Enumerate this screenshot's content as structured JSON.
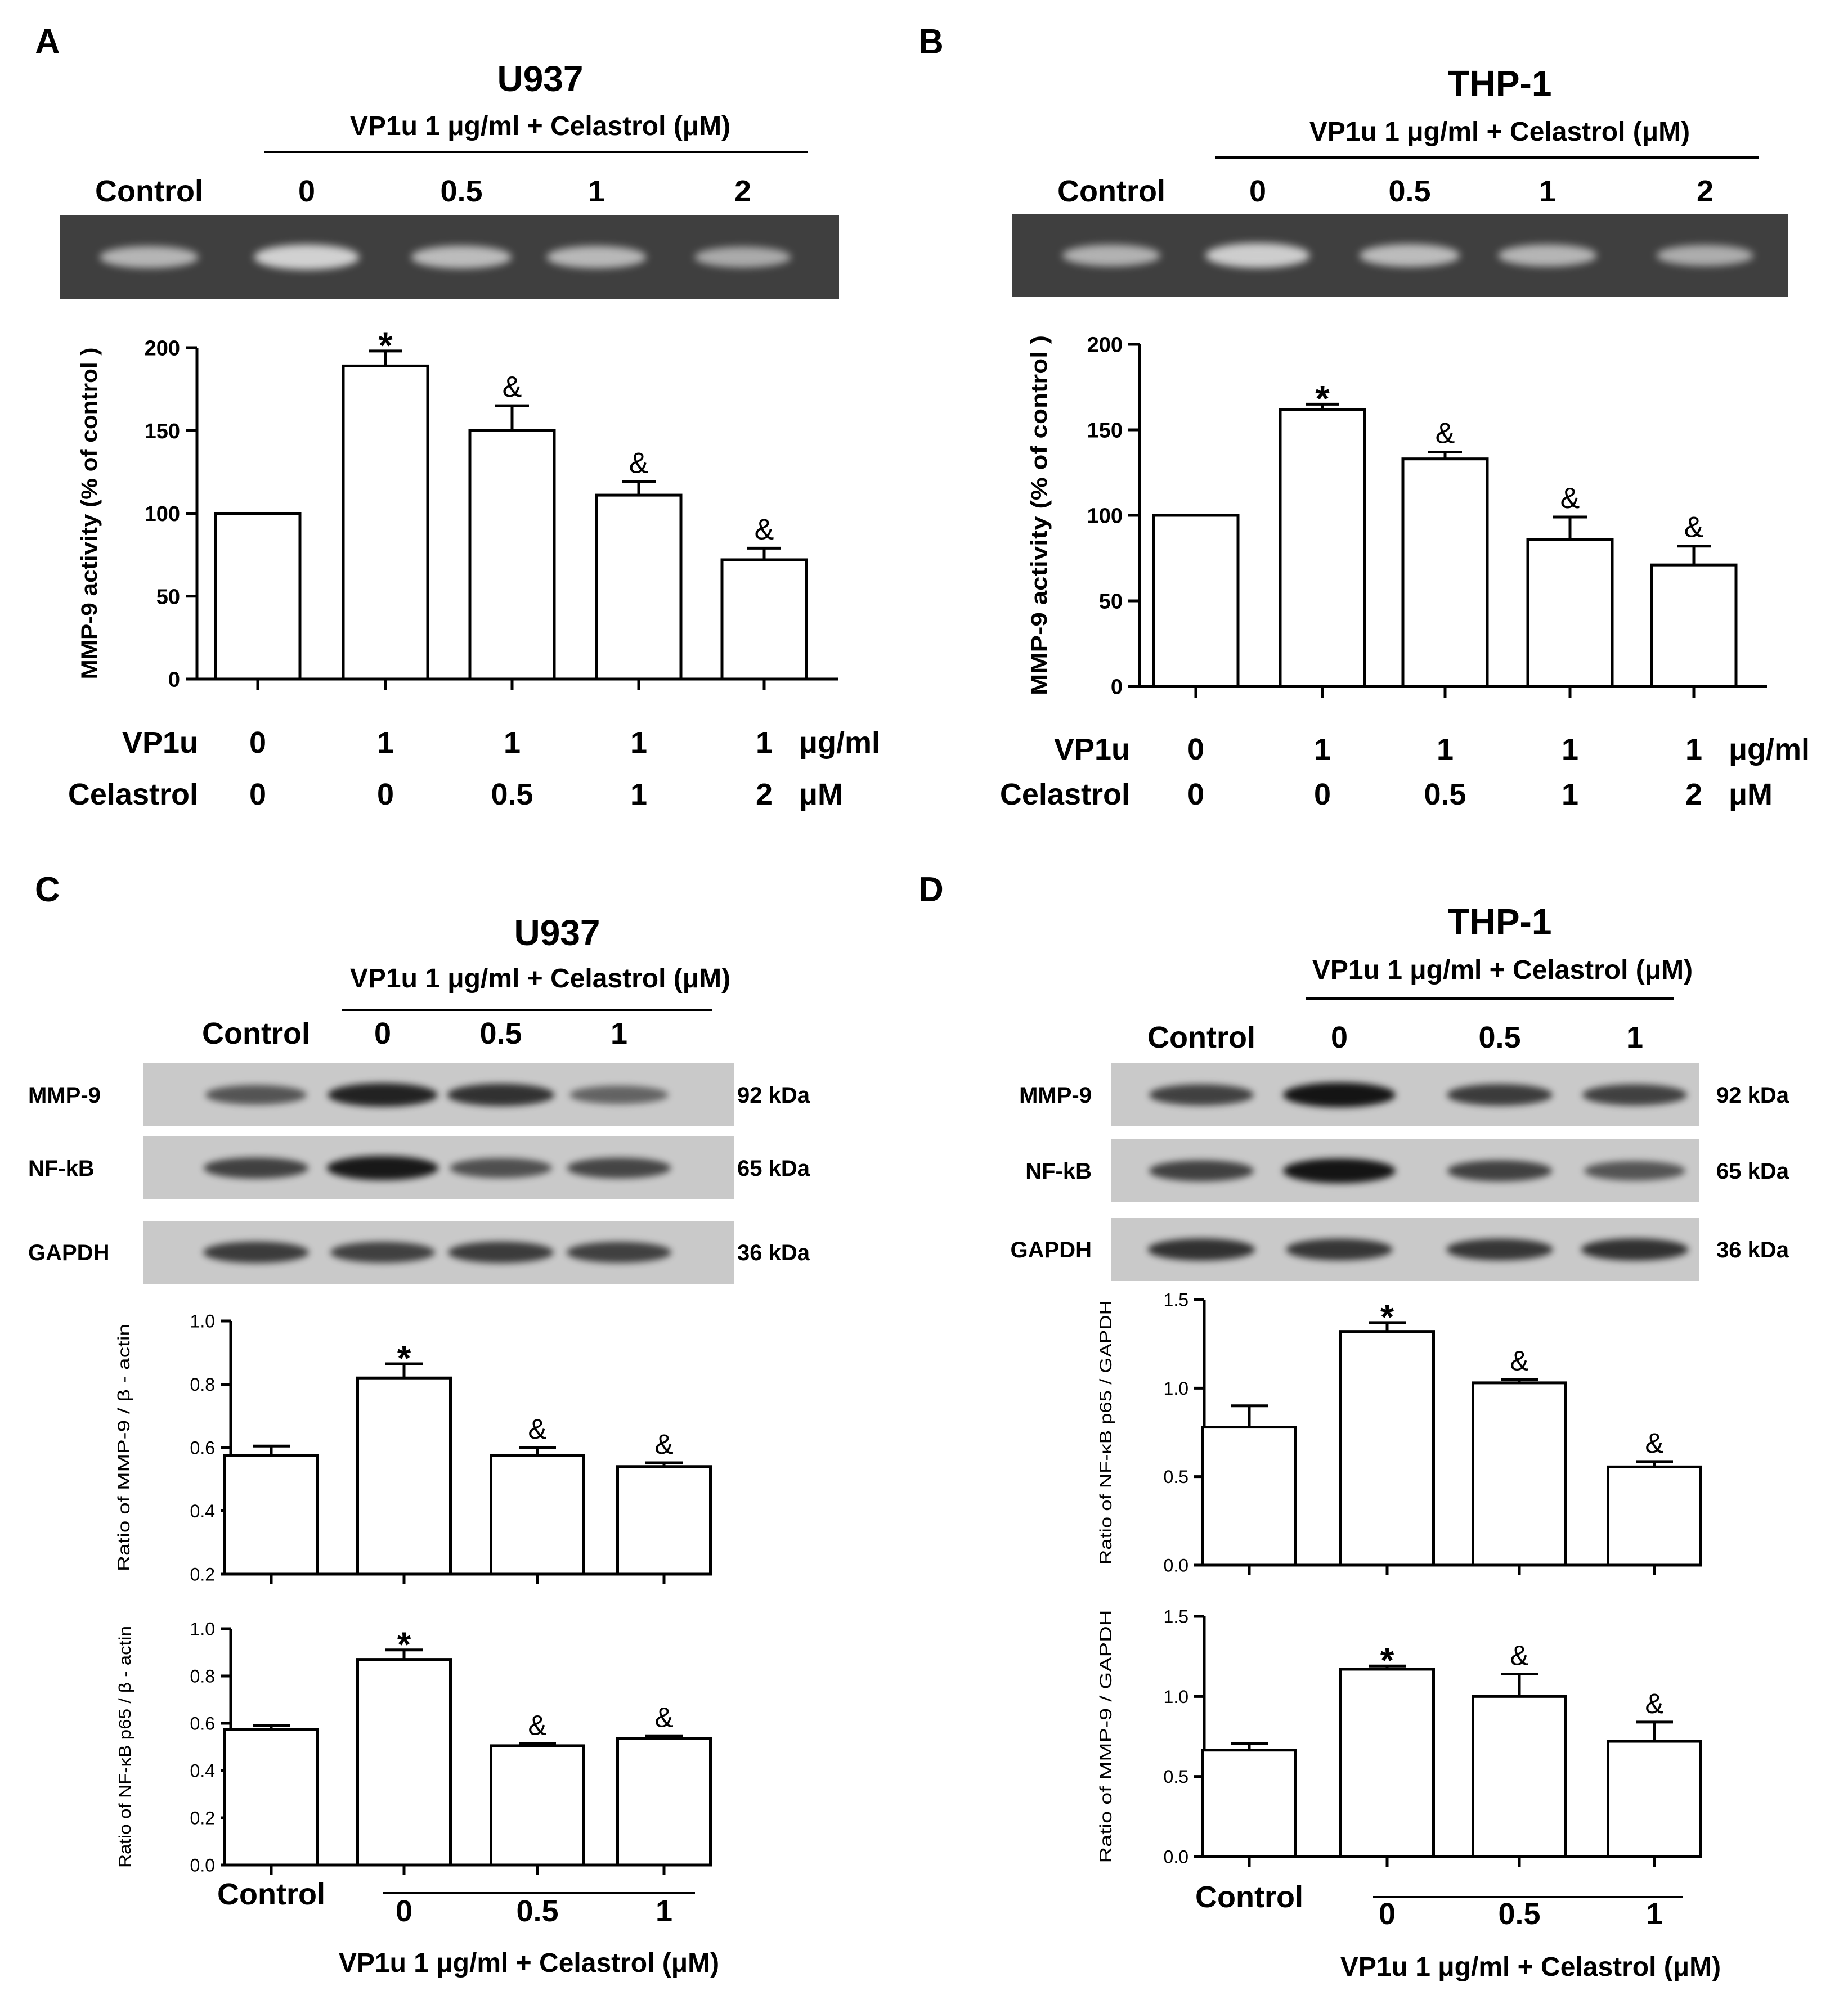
{
  "colors": {
    "gel_bg": "#3f3f3f",
    "gel_band": "#d8d8d8",
    "blot_bg": "#c9c9c9",
    "blot_band": "#141414",
    "bar_fill": "#ffffff",
    "ink": "#000000"
  },
  "chart_data": [
    {
      "panel_letter": "A",
      "type": "bar",
      "cell_line": "U937",
      "treatment_header": "VP1u 1 μg/ml + Celastrol (μM)",
      "lane_labels": [
        "Control",
        "0",
        "0.5",
        "1",
        "2"
      ],
      "ylabel": "MMP-9 activity (% of control )",
      "ylim": [
        0,
        200
      ],
      "yticks": [
        "0",
        "50",
        "100",
        "150",
        "200"
      ],
      "values": [
        100,
        189,
        150,
        111,
        72
      ],
      "errors": [
        0,
        9,
        15,
        8,
        7
      ],
      "markers": [
        "",
        "*",
        "&",
        "&",
        "&"
      ],
      "treatment_table": [
        {
          "label": "VP1u",
          "values": [
            "0",
            "1",
            "1",
            "1",
            "1"
          ],
          "unit": "μg/ml"
        },
        {
          "label": "Celastrol",
          "values": [
            "0",
            "0",
            "0.5",
            "1",
            "2"
          ],
          "unit": "μM"
        }
      ]
    },
    {
      "panel_letter": "B",
      "type": "bar",
      "cell_line": "THP-1",
      "treatment_header": "VP1u 1 μg/ml + Celastrol (μM)",
      "lane_labels": [
        "Control",
        "0",
        "0.5",
        "1",
        "2"
      ],
      "ylabel": "MMP-9 activity (% of control )",
      "ylim": [
        0,
        200
      ],
      "yticks": [
        "0",
        "50",
        "100",
        "150",
        "200"
      ],
      "values": [
        100,
        162,
        133,
        86,
        71
      ],
      "errors": [
        0,
        3,
        4,
        13,
        11
      ],
      "markers": [
        "",
        "*",
        "&",
        "&",
        "&"
      ],
      "treatment_table": [
        {
          "label": "VP1u",
          "values": [
            "0",
            "1",
            "1",
            "1",
            "1"
          ],
          "unit": "μg/ml"
        },
        {
          "label": "Celastrol",
          "values": [
            "0",
            "0",
            "0.5",
            "1",
            "2"
          ],
          "unit": "μM"
        }
      ]
    },
    {
      "panel_letter": "C",
      "type": "bar",
      "cell_line": "U937",
      "treatment_header": "VP1u 1 μg/ml + Celastrol (μM)",
      "lane_labels": [
        "Control",
        "0",
        "0.5",
        "1"
      ],
      "blots": [
        {
          "protein": "MMP-9",
          "size": "92 kDa"
        },
        {
          "protein": "NF-kB",
          "size": "65 kDa"
        },
        {
          "protein": "GAPDH",
          "size": "36 kDa"
        }
      ],
      "charts": [
        {
          "ylabel": "Ratio of MMP-9 / β - actin",
          "ylim": [
            0.2,
            1.0
          ],
          "yticks": [
            "0.2",
            "0.4",
            "0.6",
            "0.8",
            "1.0"
          ],
          "values": [
            0.575,
            0.82,
            0.575,
            0.54
          ],
          "errors": [
            0.03,
            0.045,
            0.025,
            0.012
          ],
          "markers": [
            "",
            "*",
            "&",
            "&"
          ]
        },
        {
          "ylabel": "Ratio of NF-κB p65 / β - actin",
          "ylim": [
            0.0,
            1.0
          ],
          "yticks": [
            "0.0",
            "0.2",
            "0.4",
            "0.6",
            "0.8",
            "1.0"
          ],
          "values": [
            0.575,
            0.87,
            0.505,
            0.535
          ],
          "errors": [
            0.015,
            0.04,
            0.008,
            0.012
          ],
          "markers": [
            "",
            "*",
            "&",
            "&"
          ]
        }
      ],
      "xaxis_control": "Control",
      "xaxis_doses": [
        "0",
        "0.5",
        "1"
      ],
      "xaxis_caption": "VP1u 1 μg/ml + Celastrol (μM)"
    },
    {
      "panel_letter": "D",
      "type": "bar",
      "cell_line": "THP-1",
      "treatment_header": "VP1u 1 μg/ml + Celastrol (μM)",
      "lane_labels": [
        "Control",
        "0",
        "0.5",
        "1"
      ],
      "blots": [
        {
          "protein": "MMP-9",
          "size": "92 kDa"
        },
        {
          "protein": "NF-kB",
          "size": "65 kDa"
        },
        {
          "protein": "GAPDH",
          "size": "36 kDa"
        }
      ],
      "charts": [
        {
          "ylabel": "Ratio of NF-κB p65 / GAPDH",
          "ylim": [
            0.0,
            1.5
          ],
          "yticks": [
            "0.0",
            "0.5",
            "1.0",
            "1.5"
          ],
          "values": [
            0.78,
            1.32,
            1.03,
            0.555
          ],
          "errors": [
            0.12,
            0.05,
            0.02,
            0.03
          ],
          "markers": [
            "",
            "*",
            "&",
            "&"
          ]
        },
        {
          "ylabel": "Ratio of MMP-9 / GAPDH",
          "ylim": [
            0.0,
            1.5
          ],
          "yticks": [
            "0.0",
            "0.5",
            "1.0",
            "1.5"
          ],
          "values": [
            0.665,
            1.17,
            1.0,
            0.72
          ],
          "errors": [
            0.04,
            0.02,
            0.14,
            0.12
          ],
          "markers": [
            "",
            "*",
            "&",
            "&"
          ]
        }
      ],
      "xaxis_control": "Control",
      "xaxis_doses": [
        "0",
        "0.5",
        "1"
      ],
      "xaxis_caption": "VP1u 1 μg/ml + Celastrol (μM)"
    }
  ]
}
